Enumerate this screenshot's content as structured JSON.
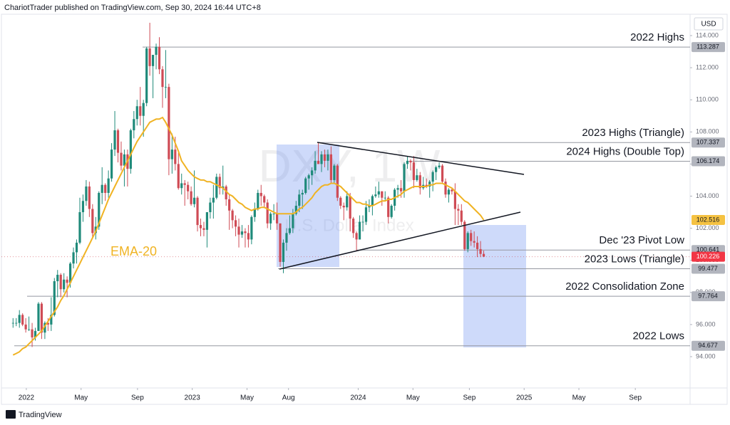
{
  "chart_data": {
    "type": "candlestick",
    "header": "ChariotTrader published on TradingView.com, Sep 30, 2024 16:44 UTC+8",
    "currency": "USD",
    "watermark": "DXY, 1W",
    "watermark_subtitle": "U.S. Dollar Index",
    "footer": "TradingView",
    "colors": {
      "up": "#1f8a7a",
      "down": "#cf4b55"
    },
    "ylim": [
      92.27,
      115.33
    ],
    "yticks": [
      {
        "value": 114,
        "label": "114.000"
      },
      {
        "value": 112,
        "label": "112.000"
      },
      {
        "value": 110,
        "label": "110.000"
      },
      {
        "value": 108,
        "label": "108.000"
      },
      {
        "value": 106,
        "label": "106.000"
      },
      {
        "value": 104,
        "label": "104.000"
      },
      {
        "value": 102,
        "label": "102.000"
      },
      {
        "value": 100,
        "label": "100.000"
      },
      {
        "value": 98,
        "label": "98.000"
      },
      {
        "value": 96,
        "label": "96.000"
      },
      {
        "value": 94,
        "label": "94.000"
      }
    ],
    "xlim": [
      2021.85,
      2026.0
    ],
    "xticks": [
      {
        "value": 2022,
        "label": "2022"
      },
      {
        "value": 2022.33,
        "label": "May"
      },
      {
        "value": 2022.67,
        "label": "Sep"
      },
      {
        "value": 2023,
        "label": "2023"
      },
      {
        "value": 2023.33,
        "label": "May"
      },
      {
        "value": 2023.58,
        "label": "Aug"
      },
      {
        "value": 2024,
        "label": "2024"
      },
      {
        "value": 2024.33,
        "label": "May"
      },
      {
        "value": 2024.67,
        "label": "Sep"
      },
      {
        "value": 2025,
        "label": "2025"
      },
      {
        "value": 2025.33,
        "label": "May"
      },
      {
        "value": 2025.67,
        "label": "Sep"
      }
    ],
    "ohlc": [
      [
        96.1,
        96.4,
        95.8,
        96.1
      ],
      [
        96.1,
        96.4,
        95.9,
        96.1
      ],
      [
        96.1,
        96.9,
        95.8,
        96.6
      ],
      [
        96.6,
        96.7,
        95.9,
        96.0
      ],
      [
        96.0,
        96.4,
        95.5,
        95.7
      ],
      [
        95.7,
        96.5,
        95.6,
        95.7
      ],
      [
        95.7,
        96.1,
        94.6,
        95.2
      ],
      [
        95.2,
        95.8,
        95.0,
        95.6
      ],
      [
        95.6,
        97.4,
        95.6,
        97.3
      ],
      [
        97.3,
        97.4,
        95.1,
        95.5
      ],
      [
        95.5,
        96.2,
        95.1,
        96.1
      ],
      [
        96.1,
        96.4,
        95.6,
        96.0
      ],
      [
        96.0,
        97.7,
        95.6,
        96.6
      ],
      [
        96.6,
        98.9,
        96.5,
        98.7
      ],
      [
        98.7,
        99.4,
        97.7,
        99.1
      ],
      [
        99.1,
        99.2,
        97.7,
        98.2
      ],
      [
        98.2,
        99.2,
        98.0,
        98.8
      ],
      [
        98.8,
        99.0,
        97.7,
        98.6
      ],
      [
        98.6,
        99.9,
        98.3,
        99.8
      ],
      [
        99.8,
        100.8,
        99.5,
        100.5
      ],
      [
        100.5,
        101.3,
        99.8,
        101.1
      ],
      [
        101.1,
        103.9,
        101.0,
        103.0
      ],
      [
        103.0,
        104.1,
        102.4,
        103.7
      ],
      [
        103.7,
        105.0,
        103.4,
        104.6
      ],
      [
        104.6,
        104.9,
        102.7,
        103.2
      ],
      [
        103.2,
        103.5,
        101.4,
        101.7
      ],
      [
        101.7,
        102.7,
        101.3,
        102.1
      ],
      [
        102.1,
        104.3,
        101.9,
        104.2
      ],
      [
        104.2,
        105.8,
        103.5,
        104.7
      ],
      [
        104.7,
        104.8,
        103.7,
        104.2
      ],
      [
        104.2,
        105.6,
        103.9,
        105.1
      ],
      [
        105.1,
        107.3,
        104.9,
        106.9
      ],
      [
        106.9,
        109.3,
        106.5,
        108.1
      ],
      [
        108.1,
        108.2,
        106.1,
        106.7
      ],
      [
        106.7,
        107.4,
        105.6,
        105.9
      ],
      [
        105.9,
        106.9,
        104.6,
        106.6
      ],
      [
        106.6,
        106.9,
        104.6,
        105.7
      ],
      [
        105.7,
        108.2,
        105.4,
        108.1
      ],
      [
        108.1,
        109.3,
        107.6,
        108.8
      ],
      [
        108.8,
        110.0,
        108.4,
        109.6
      ],
      [
        109.6,
        110.8,
        108.4,
        109.0
      ],
      [
        109.0,
        110.0,
        107.7,
        109.8
      ],
      [
        109.8,
        113.3,
        109.6,
        113.2
      ],
      [
        113.2,
        114.8,
        111.5,
        112.1
      ],
      [
        112.1,
        112.8,
        110.1,
        112.8
      ],
      [
        112.8,
        113.5,
        111.9,
        113.3
      ],
      [
        113.3,
        113.9,
        111.6,
        111.9
      ],
      [
        111.9,
        112.1,
        109.5,
        110.8
      ],
      [
        110.8,
        113.1,
        110.1,
        110.8
      ],
      [
        110.8,
        111.0,
        105.3,
        106.3
      ],
      [
        106.3,
        107.9,
        105.4,
        106.9
      ],
      [
        106.9,
        107.7,
        105.6,
        106.0
      ],
      [
        106.0,
        106.7,
        104.4,
        104.5
      ],
      [
        104.5,
        105.4,
        104.1,
        104.8
      ],
      [
        104.8,
        105.0,
        103.4,
        104.7
      ],
      [
        104.7,
        104.9,
        103.8,
        104.3
      ],
      [
        104.3,
        104.6,
        103.4,
        103.5
      ],
      [
        103.5,
        105.6,
        103.3,
        103.9
      ],
      [
        103.9,
        104.0,
        101.8,
        102.2
      ],
      [
        102.2,
        102.6,
        101.5,
        102.0
      ],
      [
        102.0,
        102.4,
        101.5,
        101.9
      ],
      [
        101.9,
        103.0,
        100.8,
        103.0
      ],
      [
        103.0,
        103.9,
        102.6,
        103.6
      ],
      [
        103.6,
        104.7,
        102.6,
        103.9
      ],
      [
        103.9,
        105.4,
        103.8,
        105.2
      ],
      [
        105.2,
        105.4,
        104.1,
        104.5
      ],
      [
        104.5,
        105.9,
        104.1,
        104.6
      ],
      [
        104.6,
        104.7,
        103.4,
        103.8
      ],
      [
        103.8,
        104.1,
        101.9,
        103.1
      ],
      [
        103.1,
        103.2,
        102.0,
        102.5
      ],
      [
        102.5,
        102.8,
        101.5,
        102.1
      ],
      [
        102.1,
        102.6,
        100.8,
        101.6
      ],
      [
        101.6,
        102.2,
        101.4,
        101.8
      ],
      [
        101.8,
        102.0,
        100.8,
        101.7
      ],
      [
        101.7,
        102.2,
        100.8,
        101.3
      ],
      [
        101.3,
        102.8,
        101.0,
        102.7
      ],
      [
        102.7,
        103.6,
        102.4,
        103.2
      ],
      [
        103.2,
        104.4,
        103.1,
        104.2
      ],
      [
        104.2,
        104.7,
        103.4,
        104.0
      ],
      [
        104.0,
        104.1,
        103.3,
        103.6
      ],
      [
        103.6,
        103.8,
        102.0,
        102.3
      ],
      [
        102.3,
        103.0,
        101.9,
        102.9
      ],
      [
        102.9,
        103.5,
        102.5,
        102.9
      ],
      [
        102.9,
        103.6,
        101.9,
        102.3
      ],
      [
        102.3,
        102.3,
        99.6,
        99.9
      ],
      [
        99.9,
        101.3,
        99.2,
        101.1
      ],
      [
        101.1,
        102.0,
        100.6,
        101.7
      ],
      [
        101.7,
        102.8,
        101.6,
        102.0
      ],
      [
        102.0,
        103.2,
        101.7,
        102.9
      ],
      [
        102.9,
        103.7,
        102.8,
        103.4
      ],
      [
        103.4,
        104.4,
        103.0,
        104.1
      ],
      [
        104.1,
        104.4,
        103.2,
        104.2
      ],
      [
        104.2,
        105.2,
        104.1,
        105.1
      ],
      [
        105.1,
        105.4,
        104.4,
        105.3
      ],
      [
        105.3,
        105.8,
        104.7,
        105.6
      ],
      [
        105.6,
        106.8,
        105.4,
        106.2
      ],
      [
        106.2,
        107.3,
        106.0,
        106.0
      ],
      [
        106.0,
        106.8,
        105.5,
        106.6
      ],
      [
        106.6,
        106.9,
        105.8,
        106.2
      ],
      [
        106.2,
        106.9,
        105.6,
        106.6
      ],
      [
        106.6,
        107.1,
        104.8,
        105.0
      ],
      [
        105.0,
        106.0,
        104.8,
        105.9
      ],
      [
        105.9,
        106.0,
        103.7,
        103.9
      ],
      [
        103.9,
        104.0,
        103.2,
        103.4
      ],
      [
        103.4,
        103.6,
        102.5,
        103.3
      ],
      [
        103.3,
        104.3,
        103.1,
        104.0
      ],
      [
        104.0,
        104.2,
        101.8,
        102.6
      ],
      [
        102.6,
        102.7,
        101.4,
        101.7
      ],
      [
        101.7,
        101.8,
        100.6,
        101.3
      ],
      [
        101.3,
        102.8,
        101.3,
        102.4
      ],
      [
        102.4,
        102.8,
        101.8,
        102.4
      ],
      [
        102.4,
        103.7,
        102.2,
        103.3
      ],
      [
        103.3,
        103.8,
        103.0,
        103.4
      ],
      [
        103.4,
        104.1,
        102.8,
        104.0
      ],
      [
        104.0,
        104.6,
        103.9,
        104.1
      ],
      [
        104.1,
        104.9,
        103.9,
        104.3
      ],
      [
        104.3,
        104.3,
        103.4,
        103.9
      ],
      [
        103.9,
        104.3,
        103.7,
        103.9
      ],
      [
        103.9,
        104.0,
        102.3,
        102.7
      ],
      [
        102.7,
        103.5,
        102.6,
        103.4
      ],
      [
        103.4,
        104.5,
        103.1,
        104.4
      ],
      [
        104.4,
        104.7,
        103.9,
        104.5
      ],
      [
        104.5,
        105.0,
        103.9,
        104.3
      ],
      [
        104.3,
        106.1,
        103.9,
        106.0
      ],
      [
        106.0,
        106.5,
        105.7,
        106.2
      ],
      [
        106.2,
        106.3,
        105.6,
        106.1
      ],
      [
        106.1,
        106.5,
        104.5,
        105.0
      ],
      [
        105.0,
        105.7,
        104.9,
        105.3
      ],
      [
        105.3,
        105.5,
        104.1,
        104.5
      ],
      [
        104.5,
        105.2,
        104.4,
        104.7
      ],
      [
        104.7,
        105.1,
        104.5,
        104.6
      ],
      [
        104.6,
        105.0,
        103.9,
        104.9
      ],
      [
        104.9,
        105.6,
        104.3,
        105.5
      ],
      [
        105.5,
        105.9,
        105.0,
        105.8
      ],
      [
        105.8,
        106.1,
        105.7,
        105.9
      ],
      [
        105.9,
        106.0,
        104.8,
        104.9
      ],
      [
        104.9,
        105.1,
        103.9,
        104.1
      ],
      [
        104.1,
        104.5,
        103.6,
        104.4
      ],
      [
        104.4,
        104.5,
        104.1,
        104.3
      ],
      [
        104.3,
        104.8,
        102.2,
        103.2
      ],
      [
        103.2,
        103.5,
        102.2,
        103.1
      ],
      [
        103.1,
        103.5,
        102.2,
        102.4
      ],
      [
        102.4,
        102.5,
        100.6,
        100.7
      ],
      [
        100.7,
        101.8,
        100.5,
        101.7
      ],
      [
        101.7,
        101.9,
        100.9,
        101.2
      ],
      [
        101.2,
        101.8,
        100.8,
        101.1
      ],
      [
        101.1,
        101.5,
        100.2,
        100.7
      ],
      [
        100.7,
        101.2,
        100.2,
        100.4
      ],
      [
        100.4,
        100.6,
        100.2,
        100.226
      ]
    ],
    "ema": {
      "name": "EMA-20",
      "color": "#f0b323",
      "values": [
        94.1,
        94.2,
        94.3,
        94.5,
        94.6,
        94.8,
        95.0,
        95.2,
        95.4,
        95.6,
        95.9,
        96.2,
        96.5,
        96.8,
        97.1,
        97.5,
        97.8,
        98.2,
        98.6,
        99.0,
        99.4,
        99.8,
        100.2,
        100.6,
        101.0,
        101.4,
        101.8,
        102.3,
        102.8,
        103.3,
        103.8,
        104.2,
        104.6,
        105.0,
        105.4,
        105.8,
        106.2,
        106.6,
        107.0,
        107.4,
        107.7,
        108.0,
        108.3,
        108.6,
        108.7,
        108.8,
        108.8,
        108.9,
        108.6,
        108.2,
        107.8,
        107.3,
        106.8,
        106.2,
        105.9,
        105.6,
        105.4,
        105.2,
        105.1,
        105.0,
        105.0,
        104.9,
        104.9,
        104.8,
        104.7,
        104.6,
        104.5,
        104.3,
        104.1,
        104.0,
        103.8,
        103.6,
        103.5,
        103.3,
        103.2,
        103.1,
        103.2,
        103.2,
        103.3,
        103.3,
        103.2,
        103.1,
        103.0,
        102.9,
        102.9,
        102.9,
        102.9,
        102.9,
        102.9,
        103.0,
        103.2,
        103.3,
        103.5,
        103.7,
        103.9,
        104.2,
        104.4,
        104.6,
        104.7,
        104.7,
        104.8,
        104.8,
        104.7,
        104.6,
        104.4,
        104.2,
        104.0,
        103.8,
        103.6,
        103.6,
        103.5,
        103.5,
        103.4,
        103.4,
        103.5,
        103.6,
        103.7,
        103.7,
        103.8,
        103.8,
        103.9,
        104.0,
        104.1,
        104.3,
        104.4,
        104.5,
        104.6,
        104.6,
        104.6,
        104.6,
        104.6,
        104.7,
        104.7,
        104.8,
        104.8,
        104.8,
        104.7,
        104.6,
        104.5,
        104.3,
        104.1,
        103.9,
        103.7,
        103.6,
        103.4,
        103.2,
        103.0,
        102.8,
        102.516
      ]
    },
    "levels": [
      {
        "label": "2022 Highs",
        "value": 113.287
      },
      {
        "label": "2023 Highs (Triangle)",
        "value": 107.337
      },
      {
        "label": "2024 Highs (Double Top)",
        "value": 106.174
      },
      {
        "label": "Dec '23 Pivot Low",
        "value": 100.641
      },
      {
        "label": "2023 Lows (Triangle)",
        "value": 99.477
      },
      {
        "label": "2022 Consolidation Zone",
        "value": 97.764
      },
      {
        "label": "2022 Lows",
        "value": 94.677
      }
    ]
  }
}
